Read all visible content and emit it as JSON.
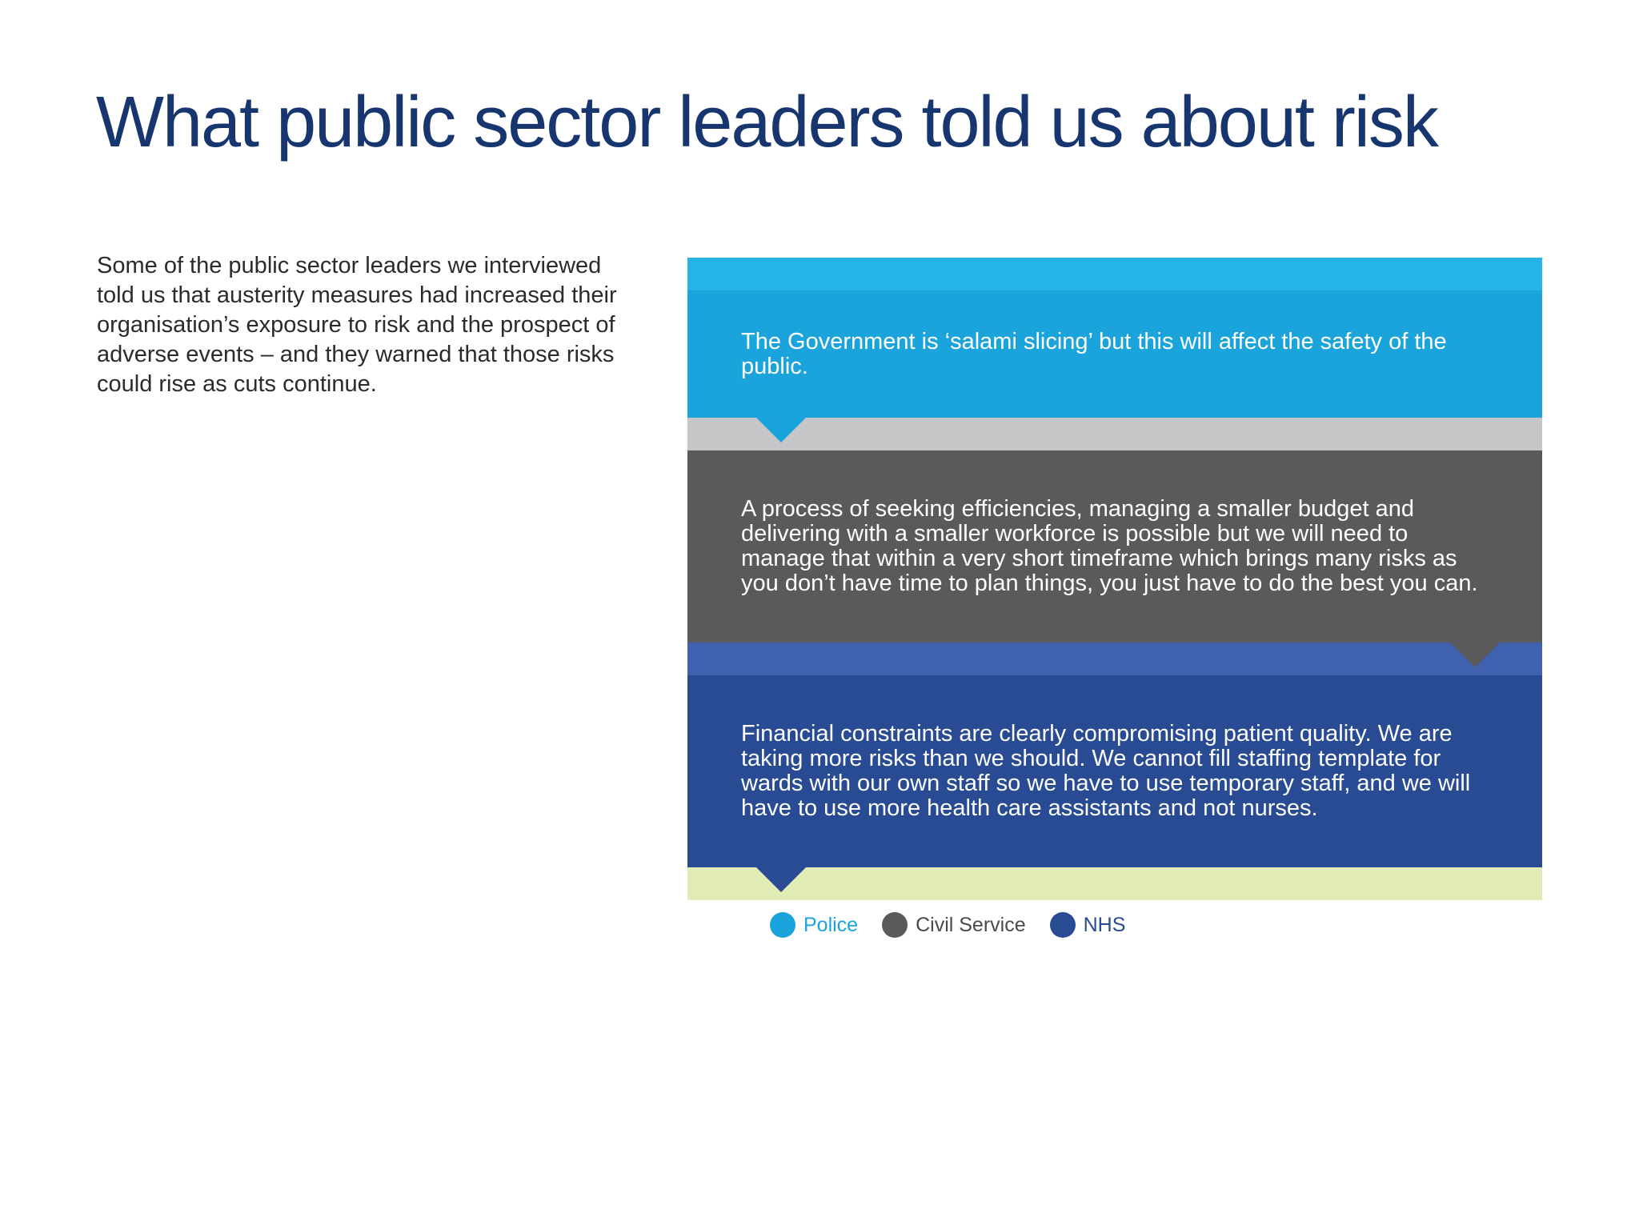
{
  "title": "What public sector leaders told us about risk",
  "intro": "Some of the public sector leaders we interviewed told us that austerity measures had increased their organisation’s exposure to risk and the prospect of adverse events – and they warned that those risks could rise as cuts continue.",
  "quotes": [
    {
      "text": "The Government is ‘salami slicing’ but this will affect the safety of the public.",
      "sector": "Police",
      "color": "#1ba3dc"
    },
    {
      "text": "A process of seeking efficiencies, managing a smaller budget and delivering with a smaller workforce is possible but we will need to manage that within a very short timeframe which brings many risks as you don’t have time to plan things, you just have to do the best you can.",
      "sector": "Civil Service",
      "color": "#5a5a5c"
    },
    {
      "text": "Financial constraints are clearly compromising patient quality. We are taking more risks than we should. We cannot fill staffing template for wards with our own staff so we have to use temporary staff, and we will have to use more health care assistants and not nurses.",
      "sector": "NHS",
      "color": "#284b93"
    }
  ],
  "legend": [
    {
      "label": "Police",
      "color": "#1ba3dc",
      "text_color": "#1ba3dc"
    },
    {
      "label": "Civil Service",
      "color": "#5a5a5c",
      "text_color": "#4a4a4a"
    },
    {
      "label": "NHS",
      "color": "#284b93",
      "text_color": "#284b93"
    }
  ],
  "colors": {
    "title": "#17356e",
    "band_top": "#25b3e8",
    "band_grey": "#c6c5c8",
    "band_blue": "#4061ad",
    "band_green": "#e1ebb5"
  }
}
